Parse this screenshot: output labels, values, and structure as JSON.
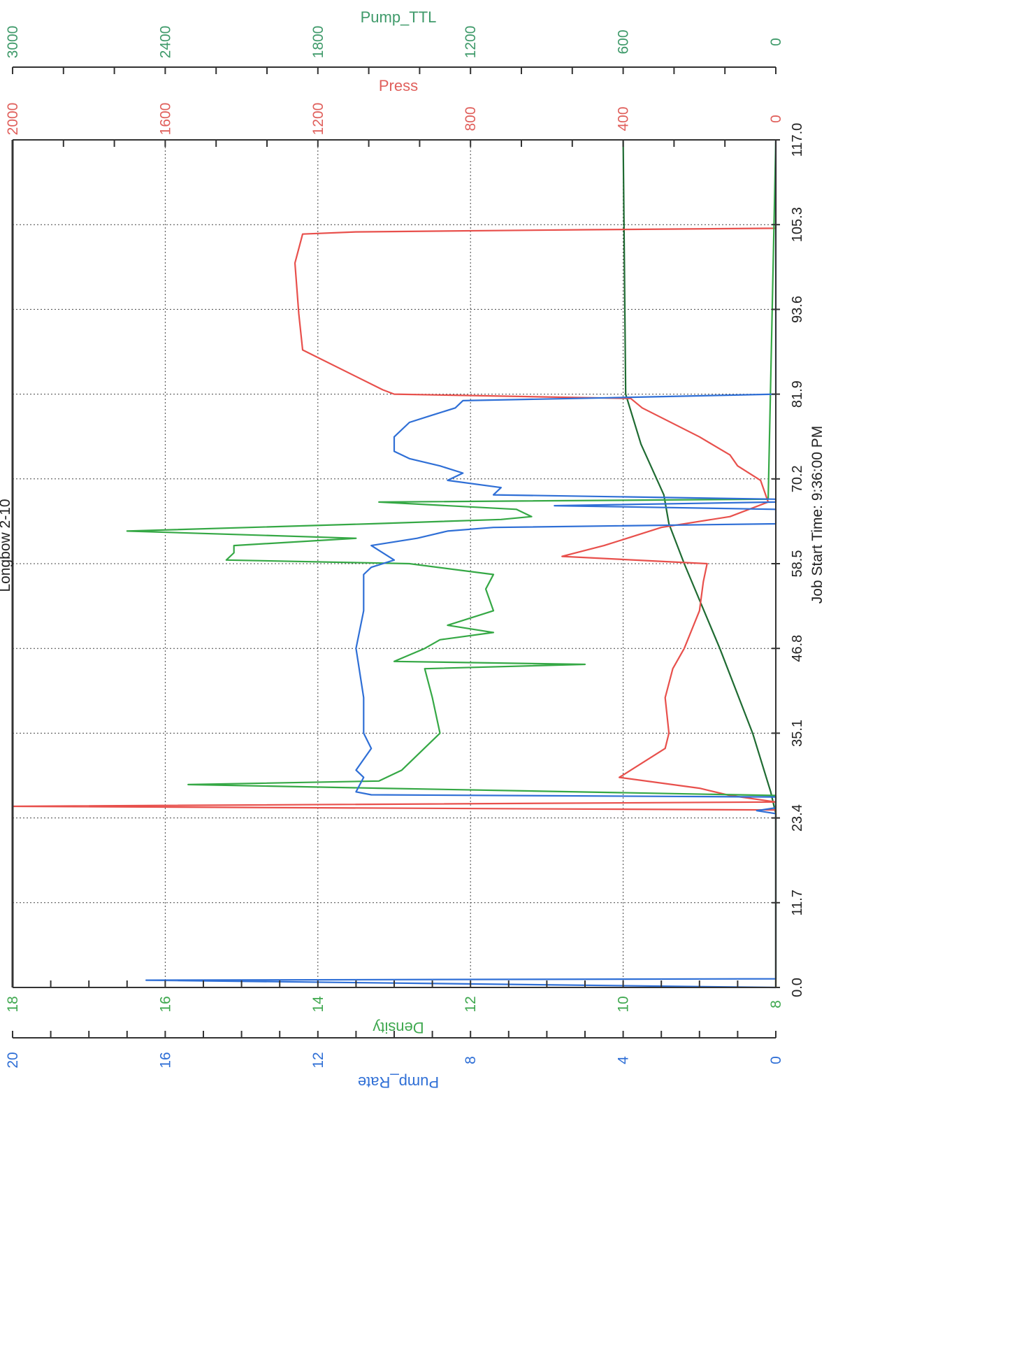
{
  "chart_data": {
    "type": "line",
    "title": "Longbow 2-10",
    "xlabel": "Job Start Time: 9:36:00 PM",
    "x_ticks": [
      "0.0",
      "11.7",
      "23.4",
      "35.1",
      "46.8",
      "58.5",
      "70.2",
      "81.9",
      "93.6",
      "105.3",
      "117.0"
    ],
    "xlim": [
      0,
      117
    ],
    "grid": true,
    "axes": [
      {
        "label": "Pump_TTL",
        "color": "#3f9a6a",
        "ticks": [
          "0",
          "600",
          "1200",
          "1800",
          "2400",
          "3000"
        ],
        "ylim": [
          0,
          3000
        ]
      },
      {
        "label": "Press",
        "color": "#e0605c",
        "ticks": [
          "0",
          "400",
          "800",
          "1200",
          "1600",
          "2000"
        ],
        "ylim": [
          0,
          2000
        ]
      },
      {
        "label": "Density",
        "color": "#3fa84f",
        "ticks": [
          "8",
          "10",
          "12",
          "14",
          "16",
          "18"
        ],
        "ylim": [
          8,
          18
        ]
      },
      {
        "label": "Pump_Rate",
        "color": "#2f6fd6",
        "ticks": [
          "0",
          "4",
          "8",
          "12",
          "16",
          "20"
        ],
        "ylim": [
          0,
          20
        ]
      }
    ],
    "series": [
      {
        "name": "Pump_TTL",
        "axis": "Pump_TTL",
        "color": "#1f6b32",
        "x": [
          0,
          24,
          27,
          35,
          46.8,
          58.5,
          64,
          68,
          75,
          81.9,
          117
        ],
        "y": [
          0,
          0,
          20,
          90,
          220,
          360,
          420,
          440,
          530,
          590,
          600
        ]
      },
      {
        "name": "Press",
        "axis": "Press",
        "color": "#e8504c",
        "x": [
          0,
          24.5,
          25,
          25.6,
          26.5,
          27.5,
          29,
          33,
          35.1,
          40,
          44,
          46.8,
          52,
          56,
          58.5,
          59.5,
          61,
          63.5,
          65,
          67,
          70,
          72,
          73.5,
          76,
          80,
          81.3,
          81.9,
          82.5,
          88,
          93,
          100,
          104,
          104.3,
          104.6,
          104.8,
          117
        ],
        "y": [
          0,
          0,
          2000,
          0,
          120,
          200,
          410,
          290,
          280,
          290,
          270,
          240,
          200,
          190,
          180,
          560,
          450,
          300,
          120,
          20,
          40,
          100,
          120,
          200,
          350,
          380,
          1000,
          1030,
          1240,
          1250,
          1260,
          1240,
          1100,
          500,
          0,
          0
        ]
      },
      {
        "name": "Density",
        "axis": "Density",
        "color": "#35a845",
        "x": [
          0,
          24,
          25,
          26.5,
          27.5,
          28,
          28.5,
          30,
          35.1,
          40,
          44,
          44.6,
          45,
          46.8,
          48,
          49,
          50,
          52,
          55,
          57,
          58.5,
          59,
          60,
          61,
          62,
          63,
          64,
          64.6,
          65,
          66,
          67,
          67.4,
          117
        ],
        "y": [
          8,
          8,
          8,
          8,
          13.2,
          15.7,
          13.2,
          12.9,
          12.4,
          12.5,
          12.6,
          10.5,
          13,
          12.6,
          12.4,
          11.7,
          12.3,
          11.7,
          11.8,
          11.7,
          12.8,
          15.2,
          15.1,
          15.1,
          13.5,
          16.5,
          13.3,
          11.6,
          11.2,
          11.4,
          13.2,
          8.1,
          8
        ]
      },
      {
        "name": "Pump_Rate",
        "axis": "Pump_Rate",
        "color": "#2f6fd6",
        "x": [
          0,
          1,
          1.2,
          1.4,
          24,
          24.4,
          24.8,
          26.3,
          26.6,
          27,
          29,
          30,
          33,
          35.1,
          40,
          46.8,
          52,
          57,
          58,
          59,
          61,
          62,
          63,
          63.5,
          64,
          66,
          66.5,
          67,
          67.4,
          68,
          69,
          70,
          71,
          72,
          73,
          74,
          76,
          78,
          79,
          80,
          81,
          81.4,
          81.9,
          117
        ],
        "y": [
          0,
          16.5,
          0,
          0,
          0,
          0.5,
          0,
          0,
          10.6,
          11,
          10.8,
          11,
          10.6,
          10.8,
          10.8,
          11,
          10.8,
          10.8,
          10.6,
          10,
          10.6,
          9.4,
          8.6,
          7.4,
          0,
          0,
          5.8,
          0,
          0,
          7.4,
          7.2,
          8.6,
          8.2,
          8.8,
          9.6,
          10,
          10,
          9.6,
          9.0,
          8.4,
          8.2,
          4.4,
          0,
          0
        ]
      }
    ]
  }
}
